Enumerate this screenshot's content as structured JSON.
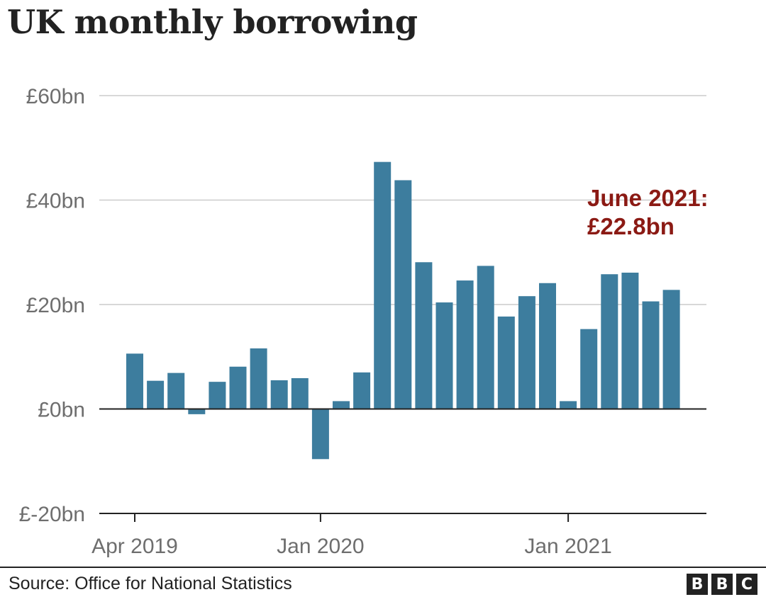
{
  "chart_data": {
    "type": "bar",
    "title": "UK monthly borrowing",
    "xlabel": "",
    "ylabel": "",
    "ylim": [
      -20,
      60
    ],
    "yticks": [
      -20,
      0,
      20,
      40,
      60
    ],
    "ytick_labels": [
      "£-20bn",
      "£0bn",
      "£20bn",
      "£40bn",
      "£60bn"
    ],
    "xtick_labels": [
      "Apr 2019",
      "Jan 2020",
      "Jan 2021"
    ],
    "grid": true,
    "categories": [
      "Apr 2019",
      "May 2019",
      "Jun 2019",
      "Jul 2019",
      "Aug 2019",
      "Sep 2019",
      "Oct 2019",
      "Nov 2019",
      "Dec 2019",
      "Jan 2020",
      "Feb 2020",
      "Mar 2020",
      "Apr 2020",
      "May 2020",
      "Jun 2020",
      "Jul 2020",
      "Aug 2020",
      "Sep 2020",
      "Oct 2020",
      "Nov 2020",
      "Dec 2020",
      "Jan 2021",
      "Feb 2021",
      "Mar 2021",
      "Apr 2021",
      "May 2021",
      "Jun 2021"
    ],
    "values": [
      10.6,
      5.4,
      6.9,
      -1.0,
      5.2,
      8.1,
      11.6,
      5.5,
      5.9,
      -9.6,
      1.5,
      7.0,
      47.3,
      43.8,
      28.1,
      20.4,
      24.6,
      27.4,
      17.7,
      21.6,
      24.1,
      1.5,
      15.3,
      25.8,
      26.1,
      20.6,
      22.8
    ],
    "bar_color": "#3d7d9e",
    "annotation": {
      "lines": [
        "June 2021:",
        "£22.8bn"
      ],
      "color": "#8b1a14"
    }
  },
  "footer": {
    "source": "Source: Office for National Statistics",
    "logo_letters": [
      "B",
      "B",
      "C"
    ]
  }
}
